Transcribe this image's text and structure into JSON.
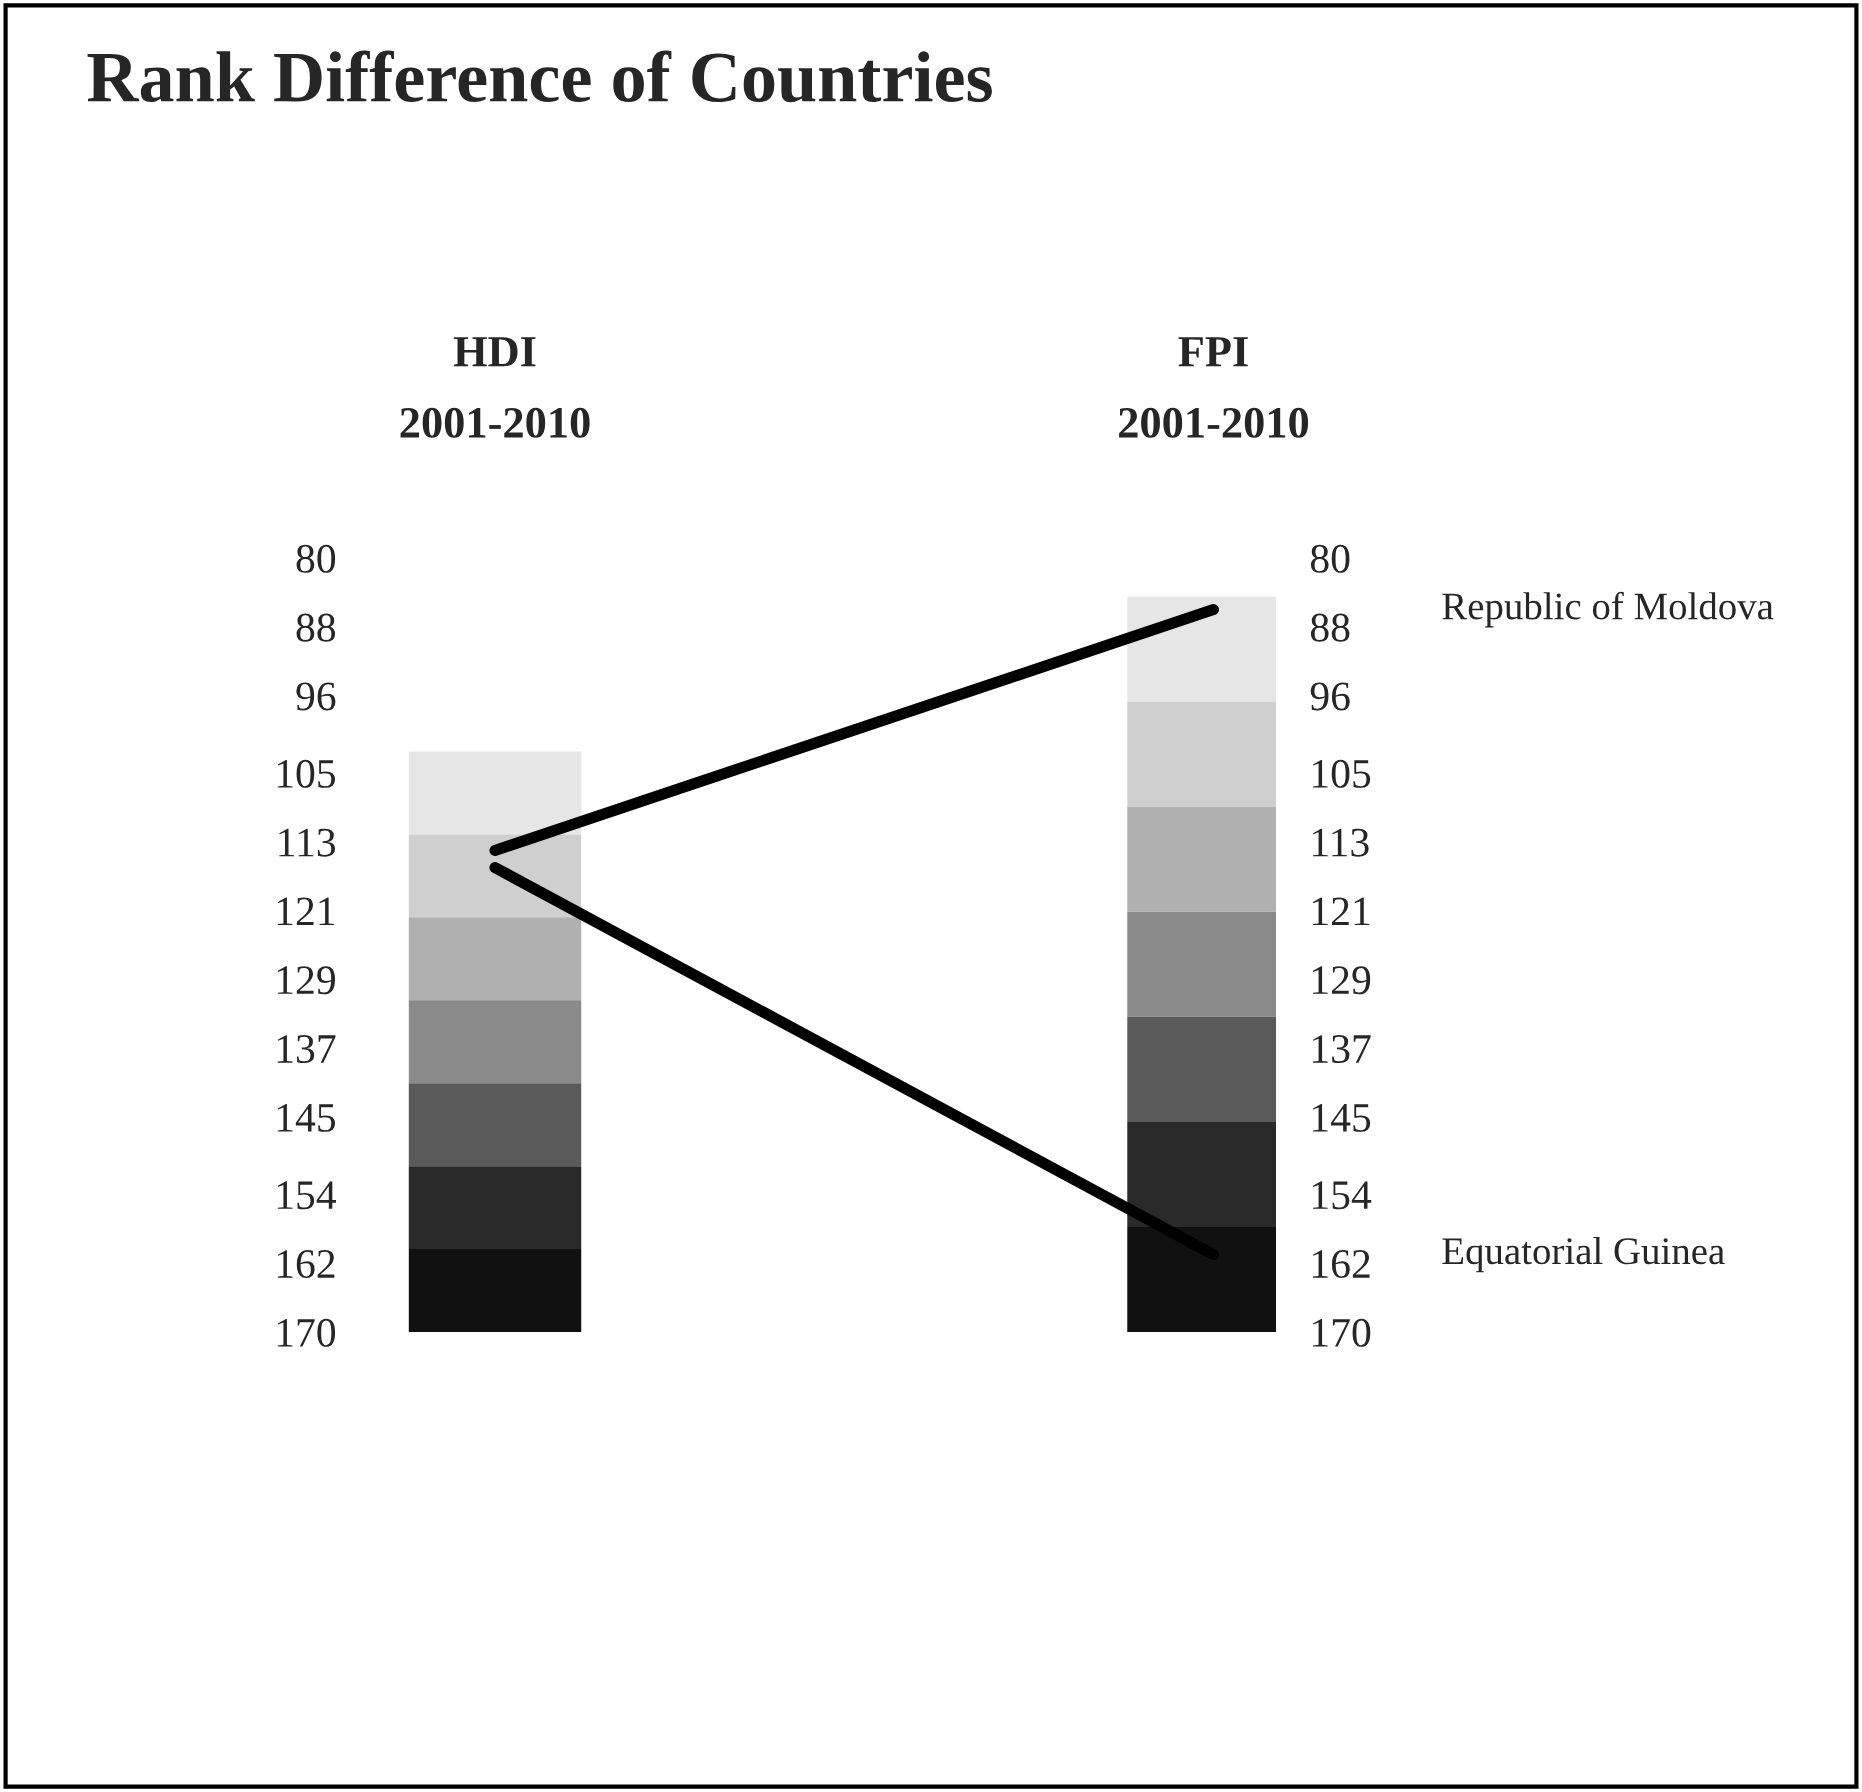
{
  "chart_data": {
    "type": "line",
    "title": "Rank Difference of Countries",
    "categories": [
      "HDI\n2001-2010",
      "FPI\n2001-2010"
    ],
    "series": [
      {
        "name": "Republic of Moldova",
        "color": "#000000",
        "values": [
          114,
          86
        ]
      },
      {
        "name": "Equatorial Guinea",
        "color": "#000000",
        "values": [
          116,
          161
        ]
      }
    ],
    "ylim": [
      170,
      80
    ],
    "yticks": [
      80,
      88,
      96,
      105,
      113,
      121,
      129,
      137,
      145,
      154,
      162,
      170
    ],
    "y2lim": [
      170,
      80
    ],
    "y2ticks": [
      80,
      88,
      96,
      105,
      113,
      121,
      129,
      137,
      145,
      154,
      162,
      170
    ],
    "grid": false,
    "legend": "right",
    "marker": "none",
    "line_style": "solid"
  }
}
